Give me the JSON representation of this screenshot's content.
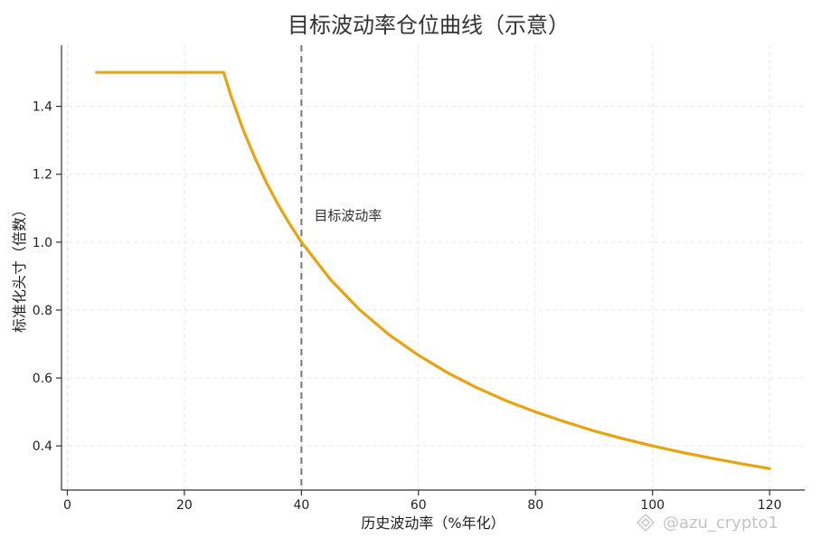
{
  "chart_data": {
    "type": "line",
    "title": "目标波动率仓位曲线（示意）",
    "xlabel": "历史波动率（%年化）",
    "ylabel": "标准化头寸（倍数）",
    "xlim": [
      -1,
      126
    ],
    "ylim": [
      0.27,
      1.58
    ],
    "x_ticks": [
      0,
      20,
      40,
      60,
      80,
      100,
      120
    ],
    "y_ticks": [
      0.4,
      0.6,
      0.8,
      1.0,
      1.2,
      1.4
    ],
    "y_tick_labels": [
      "0.4",
      "0.6",
      "0.8",
      "1.0",
      "1.2",
      "1.4"
    ],
    "grid": true,
    "series": [
      {
        "color": "#e8a410",
        "x": [
          5,
          10,
          15,
          20,
          26.7,
          28,
          30,
          32,
          34,
          36,
          38,
          40,
          45,
          50,
          55,
          60,
          65,
          70,
          75,
          80,
          85,
          90,
          95,
          100,
          105,
          110,
          115,
          120
        ],
        "y": [
          1.5,
          1.5,
          1.5,
          1.5,
          1.5,
          1.429,
          1.333,
          1.25,
          1.176,
          1.111,
          1.053,
          1.0,
          0.889,
          0.8,
          0.727,
          0.667,
          0.615,
          0.571,
          0.533,
          0.5,
          0.471,
          0.444,
          0.421,
          0.4,
          0.381,
          0.364,
          0.348,
          0.333
        ]
      }
    ],
    "vline": {
      "x": 40,
      "color": "#777777",
      "label": "目标波动率"
    }
  },
  "watermark": {
    "text": "@azu_crypto1"
  }
}
